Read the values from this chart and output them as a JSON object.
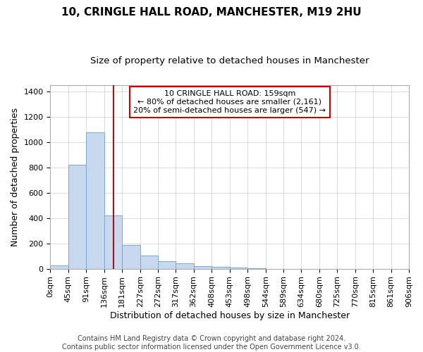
{
  "title": "10, CRINGLE HALL ROAD, MANCHESTER, M19 2HU",
  "subtitle": "Size of property relative to detached houses in Manchester",
  "xlabel": "Distribution of detached houses by size in Manchester",
  "ylabel": "Number of detached properties",
  "footer_line1": "Contains HM Land Registry data © Crown copyright and database right 2024.",
  "footer_line2": "Contains public sector information licensed under the Open Government Licence v3.0.",
  "annotation_lines": [
    "10 CRINGLE HALL ROAD: 159sqm",
    "← 80% of detached houses are smaller (2,161)",
    "20% of semi-detached houses are larger (547) →"
  ],
  "bar_edges": [
    0,
    45,
    91,
    136,
    181,
    227,
    272,
    317,
    362,
    408,
    453,
    498,
    544,
    589,
    634,
    680,
    725,
    770,
    815,
    861,
    906
  ],
  "bar_heights": [
    25,
    820,
    1075,
    420,
    185,
    105,
    60,
    40,
    20,
    15,
    10,
    5,
    0,
    0,
    0,
    0,
    0,
    0,
    0,
    0
  ],
  "bar_color": "#c8d8ee",
  "bar_edge_color": "#7aa8cc",
  "vline_x": 159,
  "vline_color": "#aa1111",
  "ylim": [
    0,
    1450
  ],
  "yticks": [
    0,
    200,
    400,
    600,
    800,
    1000,
    1200,
    1400
  ],
  "xtick_labels": [
    "0sqm",
    "45sqm",
    "91sqm",
    "136sqm",
    "181sqm",
    "227sqm",
    "272sqm",
    "317sqm",
    "362sqm",
    "408sqm",
    "453sqm",
    "498sqm",
    "544sqm",
    "589sqm",
    "634sqm",
    "680sqm",
    "725sqm",
    "770sqm",
    "815sqm",
    "861sqm",
    "906sqm"
  ],
  "grid_color": "#cccccc",
  "background_color": "#ffffff",
  "plot_bg_color": "#ffffff",
  "annotation_box_color": "#ffffff",
  "annotation_border_color": "#cc0000",
  "title_fontsize": 11,
  "subtitle_fontsize": 9.5,
  "axis_label_fontsize": 9,
  "tick_fontsize": 8,
  "annotation_fontsize": 8,
  "footer_fontsize": 7
}
